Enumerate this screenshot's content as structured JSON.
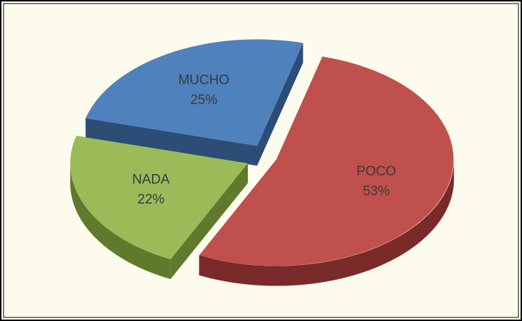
{
  "chart_data": {
    "type": "pie",
    "categories": [
      "MUCHO",
      "POCO",
      "NADA"
    ],
    "values": [
      25,
      53,
      22
    ],
    "value_labels": [
      "25%",
      "53%",
      "22%"
    ],
    "colors": [
      "#4f81bd",
      "#c0504d",
      "#9bbb59"
    ],
    "side_colors": [
      "#2c4d75",
      "#7a2a28",
      "#5f7a2c"
    ]
  }
}
